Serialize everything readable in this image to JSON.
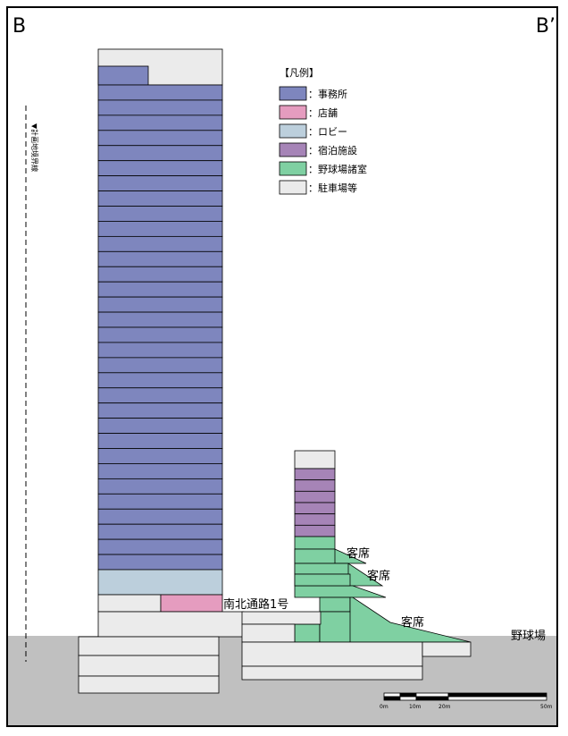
{
  "section_labels": {
    "left": "B",
    "right": "B’"
  },
  "boundary_label": "▼計画地境界線",
  "legend": {
    "title": "【凡例】",
    "items": [
      {
        "label": "：事務所",
        "color": "#7e86be"
      },
      {
        "label": "：店舗",
        "color": "#e59cbf"
      },
      {
        "label": "：ロビー",
        "color": "#bccfdc"
      },
      {
        "label": "：宿泊施設",
        "color": "#a684b7"
      },
      {
        "label": "：野球場諸室",
        "color": "#7fd0a2"
      },
      {
        "label": "：駐車場等",
        "color": "#ebebeb"
      }
    ]
  },
  "annotations": {
    "seat_upper": "客席",
    "seat_middle": "客席",
    "seat_lower": "客席",
    "passage": "南北通路1号",
    "ballpark": "野球場"
  },
  "scale": {
    "ticks": [
      "0m",
      "10m",
      "20m",
      "50m"
    ]
  },
  "colors": {
    "ground": "#c0c0c0",
    "office": "#7e86be",
    "shop": "#e59cbf",
    "lobby": "#bccfdc",
    "hotel": "#a684b7",
    "ballpark": "#7fd0a2",
    "parking": "#ebebeb"
  }
}
